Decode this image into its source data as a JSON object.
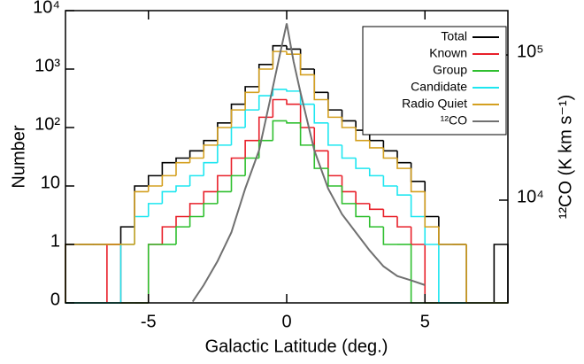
{
  "chart_data": {
    "type": "histogram",
    "x_label": "Galactic Latitude (deg.)",
    "y_label": "Number",
    "y2_label": "¹²CO (K km s⁻¹)",
    "bins": [
      -8,
      -7.5,
      -7,
      -6.5,
      -6,
      -5.5,
      -5,
      -4.5,
      -4,
      -3.5,
      -3,
      -2.5,
      -2,
      -1.5,
      -1,
      -0.5,
      0,
      0.5,
      1,
      1.5,
      2,
      2.5,
      3,
      3.5,
      4,
      4.5,
      5,
      5.5,
      6,
      6.5,
      7,
      7.5,
      8
    ],
    "series": [
      {
        "name": "Total",
        "color": "#000000",
        "values": [
          1,
          1,
          1,
          1,
          2,
          10,
          15,
          25,
          30,
          40,
          60,
          120,
          250,
          500,
          1200,
          2500,
          2200,
          1000,
          400,
          200,
          130,
          90,
          60,
          40,
          25,
          12,
          3,
          1,
          1,
          0,
          0,
          1
        ]
      },
      {
        "name": "Known",
        "color": "#e8202a",
        "values": [
          0,
          0,
          0,
          1,
          0,
          0,
          1,
          2,
          3,
          5,
          8,
          15,
          30,
          60,
          150,
          300,
          250,
          100,
          40,
          15,
          8,
          5,
          4,
          3,
          2,
          1,
          0,
          0,
          0,
          0,
          0,
          0
        ]
      },
      {
        "name": "Group",
        "color": "#2fbf2f",
        "values": [
          0,
          0,
          0,
          0,
          0,
          0,
          1,
          1,
          2,
          3,
          5,
          8,
          15,
          30,
          60,
          130,
          120,
          50,
          20,
          10,
          5,
          3,
          2,
          1,
          1,
          0,
          0,
          0,
          0,
          0,
          0,
          0
        ]
      },
      {
        "name": "Candidate",
        "color": "#1ee6f0",
        "values": [
          0,
          0,
          0,
          0,
          1,
          3,
          5,
          8,
          10,
          15,
          25,
          50,
          100,
          200,
          350,
          450,
          420,
          250,
          120,
          50,
          30,
          20,
          15,
          10,
          7,
          3,
          1,
          0,
          0,
          0,
          0,
          0
        ]
      },
      {
        "name": "Radio Quiet",
        "color": "#d4a020",
        "values": [
          1,
          1,
          1,
          1,
          1,
          8,
          10,
          15,
          25,
          30,
          50,
          100,
          200,
          400,
          1000,
          2000,
          1800,
          800,
          300,
          150,
          100,
          60,
          45,
          30,
          20,
          8,
          2,
          1,
          1,
          0,
          0,
          0
        ]
      },
      {
        "name": "¹²CO",
        "color": "#707070",
        "axis": "y2",
        "type": "line",
        "x": [
          -3.4,
          -3,
          -2.5,
          -2,
          -1.5,
          -1,
          -0.5,
          -0.25,
          0,
          0.25,
          0.5,
          1,
          1.5,
          2,
          2.5,
          3,
          3.5,
          4,
          4.5,
          5
        ],
        "values": [
          2000,
          2600,
          3800,
          6000,
          12000,
          22000,
          60000,
          100000,
          165000,
          90000,
          55000,
          22000,
          12000,
          8000,
          6000,
          4500,
          3500,
          3000,
          2800,
          2600
        ]
      }
    ],
    "xlim": [
      -8,
      8
    ],
    "xticks": [
      -5,
      0,
      5
    ],
    "ylim": [
      0.1,
      10000
    ],
    "ylog": true,
    "yticks": [
      {
        "value": 0.1,
        "label": "0"
      },
      1,
      10,
      {
        "value": 100,
        "label": "10²"
      },
      {
        "value": 1000,
        "label": "10³"
      },
      {
        "value": 10000,
        "label": "10⁴"
      }
    ],
    "y2lim": [
      1960,
      202000
    ],
    "y2log": true,
    "y2ticks": [
      {
        "value": 10000,
        "label": "10⁴"
      },
      {
        "value": 100000,
        "label": "10⁵"
      }
    ],
    "legend": "upper right"
  }
}
